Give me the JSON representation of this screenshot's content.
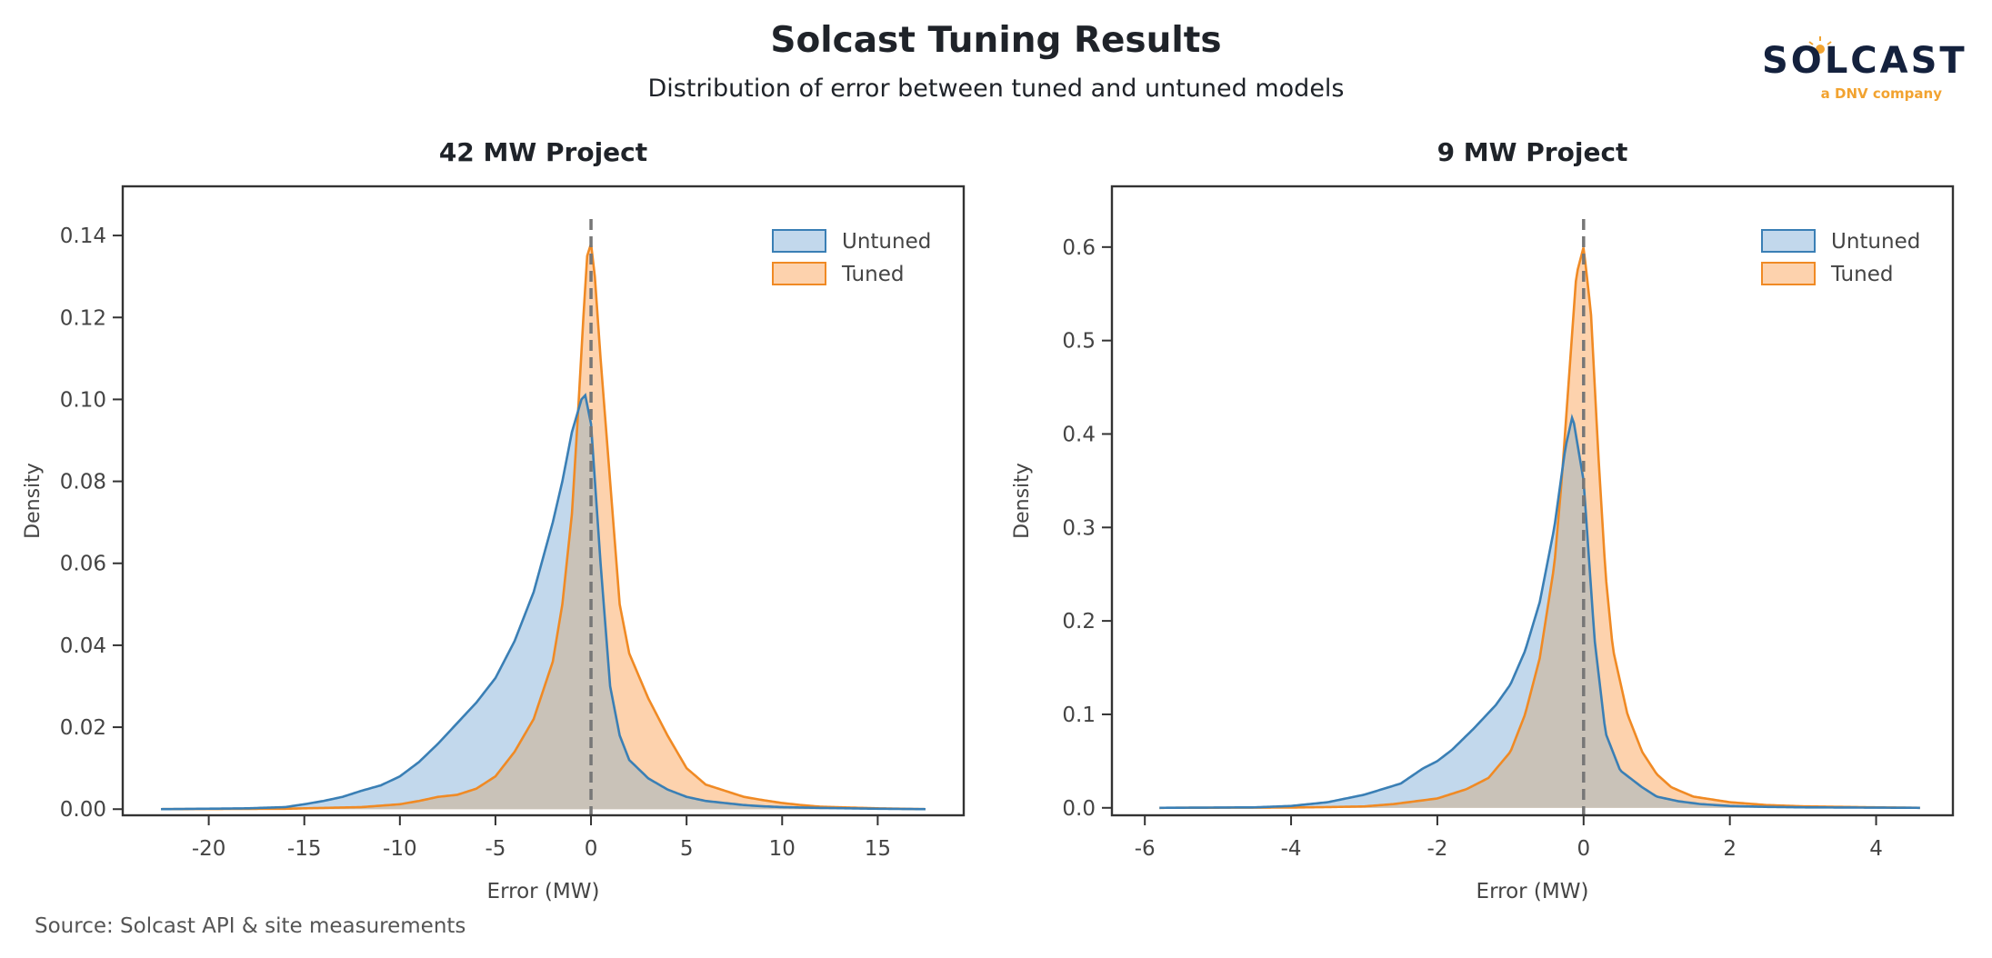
{
  "title": "Solcast Tuning Results",
  "subtitle": "Distribution of error between tuned and untuned models",
  "logo": {
    "wordmark": "SOLCAST",
    "tagline": "a DNV company"
  },
  "source": "Source: Solcast API & site measurements",
  "colors": {
    "untuned_line": "#3a7fb5",
    "untuned_fill": "#c2d8ec",
    "tuned_line": "#f08a24",
    "tuned_fill": "#fdd2ad",
    "overlap_fill": "#c9c2b8",
    "zero_line": "#777777"
  },
  "chart_data": [
    {
      "type": "area",
      "title": "42 MW Project",
      "xlabel": "Error (MW)",
      "ylabel": "Density",
      "xlim": [
        -24.5,
        19.5
      ],
      "ylim": [
        -0.0015,
        0.152
      ],
      "xticks": [
        -20,
        -15,
        -10,
        -5,
        0,
        5,
        10,
        15
      ],
      "xtick_labels": [
        "-20",
        "-15",
        "-10",
        "-5",
        "0",
        "5",
        "10",
        "15"
      ],
      "yticks": [
        0.0,
        0.02,
        0.04,
        0.06,
        0.08,
        0.1,
        0.12,
        0.14
      ],
      "ytick_labels": [
        "0.00",
        "0.02",
        "0.04",
        "0.06",
        "0.08",
        "0.10",
        "0.12",
        "0.14"
      ],
      "vline": 0,
      "legend": "top-right",
      "grid": false,
      "series": [
        {
          "name": "Untuned",
          "x": [
            -22.5,
            -18,
            -16,
            -15,
            -14,
            -13,
            -12,
            -11,
            -10,
            -9,
            -8,
            -7,
            -6,
            -5,
            -4,
            -3,
            -2,
            -1.5,
            -1,
            -0.5,
            -0.3,
            0,
            0.5,
            1,
            1.5,
            2,
            3,
            4,
            5,
            6,
            7,
            8,
            9,
            10,
            12,
            15,
            17.5
          ],
          "y": [
            0,
            0.0002,
            0.0005,
            0.0012,
            0.002,
            0.003,
            0.0045,
            0.0058,
            0.008,
            0.0115,
            0.016,
            0.021,
            0.026,
            0.032,
            0.041,
            0.053,
            0.07,
            0.08,
            0.092,
            0.1,
            0.101,
            0.094,
            0.06,
            0.03,
            0.018,
            0.012,
            0.0075,
            0.0048,
            0.003,
            0.002,
            0.0015,
            0.001,
            0.0007,
            0.0005,
            0.0003,
            0.0001,
            0
          ]
        },
        {
          "name": "Tuned",
          "x": [
            -22.5,
            -16,
            -14,
            -12,
            -10,
            -9,
            -8,
            -7,
            -6,
            -5,
            -4,
            -3,
            -2,
            -1.5,
            -1,
            -0.7,
            -0.4,
            -0.2,
            0,
            0.2,
            0.5,
            1,
            1.5,
            2,
            3,
            4,
            5,
            6,
            7,
            8,
            9,
            10,
            11,
            12,
            15,
            17.5
          ],
          "y": [
            0,
            0.0001,
            0.0003,
            0.0005,
            0.0012,
            0.002,
            0.003,
            0.0035,
            0.005,
            0.008,
            0.014,
            0.022,
            0.036,
            0.05,
            0.072,
            0.095,
            0.12,
            0.135,
            0.138,
            0.13,
            0.11,
            0.08,
            0.05,
            0.038,
            0.027,
            0.018,
            0.01,
            0.006,
            0.0045,
            0.003,
            0.0022,
            0.0015,
            0.001,
            0.0006,
            0.0002,
            0
          ]
        }
      ]
    },
    {
      "type": "area",
      "title": "9 MW Project",
      "xlabel": "Error (MW)",
      "ylabel": "Density",
      "xlim": [
        -6.45,
        5.05
      ],
      "ylim": [
        -0.008,
        0.665
      ],
      "xticks": [
        -6,
        -4,
        -2,
        0,
        2,
        4
      ],
      "xtick_labels": [
        "-6",
        "-4",
        "-2",
        "0",
        "2",
        "4"
      ],
      "yticks": [
        0.0,
        0.1,
        0.2,
        0.3,
        0.4,
        0.5,
        0.6
      ],
      "ytick_labels": [
        "0.0",
        "0.1",
        "0.2",
        "0.3",
        "0.4",
        "0.5",
        "0.6"
      ],
      "vline": 0,
      "legend": "top-right",
      "grid": false,
      "series": [
        {
          "name": "Untuned",
          "x": [
            -5.8,
            -4.5,
            -4,
            -3.5,
            -3,
            -2.5,
            -2.2,
            -2,
            -1.8,
            -1.5,
            -1.2,
            -1,
            -0.8,
            -0.6,
            -0.4,
            -0.25,
            -0.15,
            0,
            0.15,
            0.3,
            0.5,
            0.8,
            1,
            1.3,
            1.6,
            2,
            2.5,
            3,
            4,
            4.6
          ],
          "y": [
            0,
            0.0005,
            0.002,
            0.006,
            0.014,
            0.026,
            0.042,
            0.05,
            0.062,
            0.085,
            0.11,
            0.132,
            0.168,
            0.22,
            0.3,
            0.385,
            0.42,
            0.35,
            0.18,
            0.08,
            0.04,
            0.022,
            0.012,
            0.007,
            0.004,
            0.002,
            0.001,
            0.0005,
            0.0002,
            0
          ]
        },
        {
          "name": "Tuned",
          "x": [
            -5.8,
            -4,
            -3.5,
            -3,
            -2.6,
            -2.2,
            -2,
            -1.8,
            -1.6,
            -1.3,
            -1,
            -0.8,
            -0.6,
            -0.4,
            -0.3,
            -0.2,
            -0.1,
            0,
            0.1,
            0.2,
            0.3,
            0.4,
            0.6,
            0.8,
            1,
            1.2,
            1.5,
            2,
            2.5,
            3,
            4,
            4.6
          ],
          "y": [
            0,
            0.0003,
            0.0008,
            0.0015,
            0.004,
            0.008,
            0.01,
            0.015,
            0.02,
            0.032,
            0.06,
            0.1,
            0.16,
            0.26,
            0.35,
            0.46,
            0.57,
            0.6,
            0.53,
            0.38,
            0.25,
            0.17,
            0.1,
            0.06,
            0.036,
            0.022,
            0.012,
            0.006,
            0.003,
            0.0016,
            0.0005,
            0
          ]
        }
      ]
    }
  ]
}
